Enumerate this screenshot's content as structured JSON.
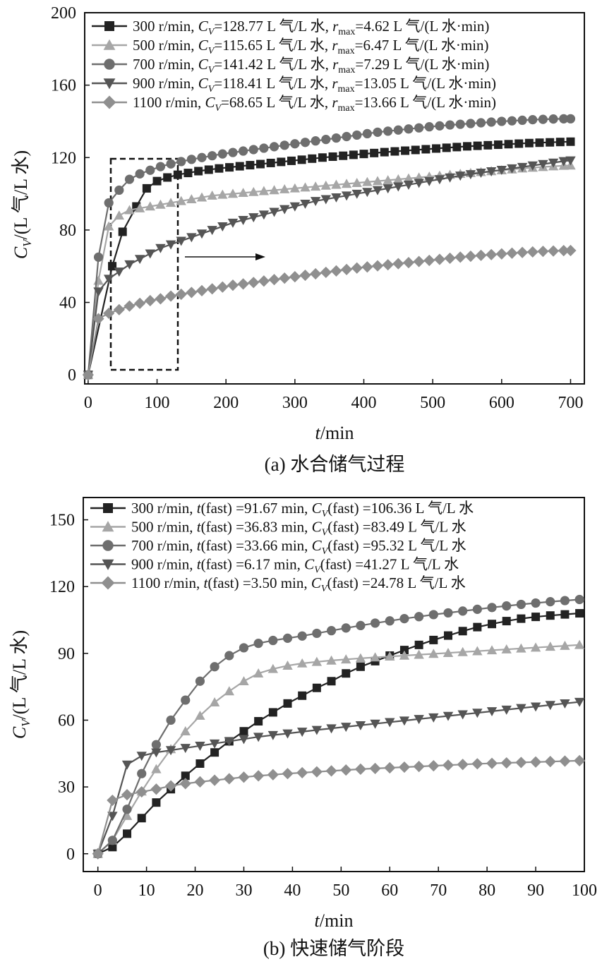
{
  "chart_data": [
    {
      "id": "a",
      "type": "line",
      "caption": "(a) 水合储气过程",
      "xlabel_italic": "t",
      "xlabel_unit": "/min",
      "ylabel_italic": "C",
      "ylabel_sub": "V",
      "ylabel_unit": "/(L 气/L 水)",
      "xlim": [
        -5,
        720
      ],
      "ylim": [
        -5,
        200
      ],
      "xticks": [
        0,
        100,
        200,
        300,
        400,
        500,
        600,
        700
      ],
      "yticks": [
        0,
        40,
        80,
        120,
        160,
        200
      ],
      "annotation": "dashed box 0–100 min with arrow pointing right",
      "series": [
        {
          "name": "300 r/min",
          "marker": "square",
          "color": "#222222",
          "legend": {
            "speed": "300 r/min, ",
            "cv": "=128.77 L 气/L 水, ",
            "r": "=4.62 L 气/(L 水·min)"
          },
          "x": [
            0,
            35,
            50,
            70,
            85,
            100,
            115,
            130,
            145,
            160,
            175,
            190,
            205,
            220,
            235,
            250,
            265,
            280,
            295,
            310,
            325,
            340,
            355,
            370,
            385,
            400,
            415,
            430,
            445,
            460,
            475,
            490,
            505,
            520,
            535,
            550,
            565,
            580,
            595,
            610,
            625,
            640,
            655,
            670,
            685,
            700
          ],
          "y": [
            0,
            60,
            79,
            93,
            103,
            107,
            109,
            110.5,
            111.5,
            112.5,
            113.3,
            114,
            114.6,
            115.2,
            115.8,
            116.4,
            117,
            117.6,
            118.2,
            118.8,
            119.4,
            120,
            120.5,
            121,
            121.5,
            122,
            122.5,
            123,
            123.4,
            123.8,
            124.2,
            124.6,
            125,
            125.4,
            125.8,
            126.2,
            126.5,
            126.8,
            127.1,
            127.4,
            127.7,
            128,
            128.2,
            128.4,
            128.6,
            128.77
          ]
        },
        {
          "name": "500 r/min",
          "marker": "triangle-up",
          "color": "#a6a6a6",
          "legend": {
            "speed": "500 r/min, ",
            "cv": "=115.65 L 气/L 水, ",
            "r": "=6.47 L 气/(L 水·min)"
          },
          "x": [
            0,
            15,
            30,
            45,
            60,
            75,
            90,
            105,
            120,
            135,
            150,
            165,
            180,
            195,
            210,
            225,
            240,
            255,
            270,
            285,
            300,
            315,
            330,
            345,
            360,
            375,
            390,
            405,
            420,
            435,
            450,
            465,
            480,
            495,
            510,
            525,
            540,
            555,
            570,
            585,
            600,
            615,
            630,
            645,
            660,
            675,
            690,
            700
          ],
          "y": [
            0,
            52,
            82,
            88,
            91,
            92,
            93,
            94,
            95,
            96,
            97,
            98,
            99,
            99.5,
            100,
            100.5,
            101,
            101.5,
            102,
            102.5,
            103,
            103.5,
            104,
            104.5,
            105,
            105.5,
            106,
            106.5,
            107,
            107.5,
            108,
            108.5,
            109,
            109.5,
            110,
            110.5,
            111,
            111.5,
            112,
            112.5,
            113,
            113.5,
            114,
            114.4,
            114.8,
            115.2,
            115.5,
            115.65
          ]
        },
        {
          "name": "700 r/min",
          "marker": "circle",
          "color": "#6e6e6e",
          "legend": {
            "speed": "700 r/min, ",
            "cv": "=141.42 L 气/L 水, ",
            "r": "=7.29 L 气/(L 水·min)"
          },
          "x": [
            0,
            15,
            30,
            45,
            60,
            75,
            90,
            105,
            120,
            135,
            150,
            165,
            180,
            195,
            210,
            225,
            240,
            255,
            270,
            285,
            300,
            315,
            330,
            345,
            360,
            375,
            390,
            405,
            420,
            435,
            450,
            465,
            480,
            495,
            510,
            525,
            540,
            555,
            570,
            585,
            600,
            615,
            630,
            645,
            660,
            675,
            690,
            700
          ],
          "y": [
            0,
            65,
            95,
            102,
            108,
            111,
            113,
            115,
            116.5,
            117.8,
            119,
            120,
            121,
            122,
            122.8,
            123.6,
            124.4,
            125.2,
            126,
            126.8,
            127.6,
            128.4,
            129.2,
            130,
            130.8,
            131.6,
            132.4,
            133.2,
            134,
            134.6,
            135.2,
            135.8,
            136.4,
            137,
            137.5,
            138,
            138.4,
            138.8,
            139.2,
            139.6,
            140,
            140.3,
            140.6,
            140.9,
            141.1,
            141.3,
            141.4,
            141.42
          ]
        },
        {
          "name": "900 r/min",
          "marker": "triangle-down",
          "color": "#555555",
          "legend": {
            "speed": "900 r/min, ",
            "cv": "=118.41 L 气/L 水, ",
            "r": "=13.05 L 气/(L 水·min)"
          },
          "x": [
            0,
            15,
            30,
            45,
            60,
            75,
            90,
            105,
            120,
            135,
            150,
            165,
            180,
            195,
            210,
            225,
            240,
            255,
            270,
            285,
            300,
            315,
            330,
            345,
            360,
            375,
            390,
            405,
            420,
            435,
            450,
            465,
            480,
            495,
            510,
            525,
            540,
            555,
            570,
            585,
            600,
            615,
            630,
            645,
            660,
            675,
            690,
            700
          ],
          "y": [
            0,
            46,
            53,
            57,
            61,
            64,
            67,
            70,
            72,
            74,
            76,
            78,
            80,
            82,
            84,
            85.5,
            87,
            88.5,
            90,
            91.5,
            93,
            94.5,
            96,
            97,
            98,
            99,
            100,
            101,
            102,
            103,
            104,
            105,
            106,
            107,
            108,
            109,
            110,
            110.8,
            111.6,
            112.4,
            113.2,
            114,
            114.8,
            115.6,
            116.4,
            117.2,
            118,
            118.41
          ]
        },
        {
          "name": "1100 r/min",
          "marker": "diamond",
          "color": "#8f8f8f",
          "legend": {
            "speed": "1100 r/min, ",
            "cv": "=68.65 L 气/L 水, ",
            "r": "=13.66 L 气/(L 水·min)"
          },
          "x": [
            0,
            15,
            30,
            45,
            60,
            75,
            90,
            105,
            120,
            135,
            150,
            165,
            180,
            195,
            210,
            225,
            240,
            255,
            270,
            285,
            300,
            315,
            330,
            345,
            360,
            375,
            390,
            405,
            420,
            435,
            450,
            465,
            480,
            495,
            510,
            525,
            540,
            555,
            570,
            585,
            600,
            615,
            630,
            645,
            660,
            675,
            690,
            700
          ],
          "y": [
            0,
            31,
            34,
            36,
            38,
            39.5,
            41,
            42,
            43.5,
            44.5,
            45.5,
            46.5,
            47.5,
            48.5,
            49.5,
            50.2,
            51,
            51.8,
            52.6,
            53.4,
            54.2,
            55,
            55.8,
            56.6,
            57.4,
            58.2,
            59,
            59.6,
            60.2,
            60.8,
            61.4,
            62,
            62.6,
            63.2,
            63.8,
            64.4,
            65,
            65.5,
            66,
            66.4,
            66.8,
            67.2,
            67.6,
            67.9,
            68.2,
            68.4,
            68.6,
            68.65
          ]
        }
      ]
    },
    {
      "id": "b",
      "type": "line",
      "caption": "(b) 快速储气阶段",
      "xlabel_italic": "t",
      "xlabel_unit": "/min",
      "ylabel_italic": "C",
      "ylabel_sub": "V",
      "ylabel_unit": "/(L 气/L 水)",
      "xlim": [
        -3,
        100
      ],
      "ylim": [
        -8,
        160
      ],
      "xticks": [
        0,
        10,
        20,
        30,
        40,
        50,
        60,
        70,
        80,
        90,
        100
      ],
      "yticks": [
        0,
        30,
        60,
        90,
        120,
        150
      ],
      "series": [
        {
          "name": "300 r/min",
          "marker": "square",
          "color": "#222222",
          "legend": {
            "speed": "300 r/min, ",
            "t": "(fast) =91.67 min, ",
            "cv": "(fast) =106.36 L 气/L 水"
          },
          "x": [
            0,
            3,
            6,
            9,
            12,
            15,
            18,
            21,
            24,
            27,
            30,
            33,
            36,
            39,
            42,
            45,
            48,
            51,
            54,
            57,
            60,
            63,
            66,
            69,
            72,
            75,
            78,
            81,
            84,
            87,
            90,
            93,
            96,
            99
          ],
          "y": [
            0,
            3,
            9,
            16,
            23,
            29,
            35,
            40.5,
            45.5,
            50.5,
            55,
            59.5,
            63.5,
            67.5,
            71,
            74.5,
            77.5,
            81,
            84,
            86.5,
            89,
            91.5,
            93.8,
            96,
            98,
            100,
            101.8,
            103.2,
            104.5,
            105.6,
            106.4,
            107,
            107.5,
            108
          ]
        },
        {
          "name": "500 r/min",
          "marker": "triangle-up",
          "color": "#a6a6a6",
          "legend": {
            "speed": "500 r/min, ",
            "t": "(fast) =36.83 min, ",
            "cv": "(fast) =83.49 L 气/L 水"
          },
          "x": [
            0,
            3,
            6,
            9,
            12,
            15,
            18,
            21,
            24,
            27,
            30,
            33,
            36,
            39,
            42,
            45,
            48,
            51,
            54,
            57,
            60,
            63,
            66,
            69,
            72,
            75,
            78,
            81,
            84,
            87,
            90,
            93,
            96,
            99
          ],
          "y": [
            0,
            6,
            17,
            28,
            38,
            47,
            55,
            62,
            68,
            73,
            77.5,
            81,
            83,
            84.5,
            85.5,
            86.2,
            86.8,
            87.3,
            87.8,
            88.2,
            88.6,
            89,
            89.4,
            89.8,
            90.2,
            90.6,
            91,
            91.4,
            91.8,
            92.2,
            92.6,
            93,
            93.4,
            93.8
          ]
        },
        {
          "name": "700 r/min",
          "marker": "circle",
          "color": "#6e6e6e",
          "legend": {
            "speed": "700 r/min, ",
            "t": "(fast) =33.66 min, ",
            "cv": "(fast) =95.32 L 气/L 水"
          },
          "x": [
            0,
            3,
            6,
            9,
            12,
            15,
            18,
            21,
            24,
            27,
            30,
            33,
            36,
            39,
            42,
            45,
            48,
            51,
            54,
            57,
            60,
            63,
            66,
            69,
            72,
            75,
            78,
            81,
            84,
            87,
            90,
            93,
            96,
            99
          ],
          "y": [
            0,
            6,
            20,
            36,
            49,
            60,
            69,
            77.5,
            84,
            89,
            92.5,
            94.5,
            95.8,
            96.8,
            97.8,
            99,
            100.2,
            101.4,
            102.5,
            103.6,
            104.6,
            105.6,
            106.5,
            107.4,
            108.2,
            109,
            109.8,
            110.6,
            111.3,
            112,
            112.6,
            113.2,
            113.7,
            114.2
          ]
        },
        {
          "name": "900 r/min",
          "marker": "triangle-down",
          "color": "#555555",
          "legend": {
            "speed": "900 r/min, ",
            "t": "(fast) =6.17 min, ",
            "cv": "(fast) =41.27 L 气/L 水"
          },
          "x": [
            0,
            3,
            6,
            9,
            12,
            15,
            18,
            21,
            24,
            27,
            30,
            33,
            36,
            39,
            42,
            45,
            48,
            51,
            54,
            57,
            60,
            63,
            66,
            69,
            72,
            75,
            78,
            81,
            84,
            87,
            90,
            93,
            96,
            99
          ],
          "y": [
            0,
            17,
            40,
            44,
            45.5,
            46.5,
            47.5,
            48.5,
            49.5,
            50.5,
            51.5,
            52.5,
            53.3,
            54,
            54.8,
            55.6,
            56.3,
            57,
            57.7,
            58.4,
            59.1,
            59.8,
            60.5,
            61.2,
            61.9,
            62.6,
            63.3,
            64,
            64.7,
            65.4,
            66.1,
            66.8,
            67.5,
            68.2
          ]
        },
        {
          "name": "1100 r/min",
          "marker": "diamond",
          "color": "#8f8f8f",
          "legend": {
            "speed": "1100 r/min, ",
            "t": "(fast) =3.50 min, ",
            "cv": "(fast) =24.78 L 气/L 水"
          },
          "x": [
            0,
            3,
            6,
            9,
            12,
            15,
            18,
            21,
            24,
            27,
            30,
            33,
            36,
            39,
            42,
            45,
            48,
            51,
            54,
            57,
            60,
            63,
            66,
            69,
            72,
            75,
            78,
            81,
            84,
            87,
            90,
            93,
            96,
            99
          ],
          "y": [
            0,
            24,
            26.5,
            27.8,
            29,
            30.5,
            31.5,
            32.3,
            33,
            33.7,
            34.4,
            35,
            35.5,
            36,
            36.4,
            36.8,
            37.2,
            37.6,
            38,
            38.3,
            38.6,
            38.9,
            39.2,
            39.5,
            39.8,
            40.1,
            40.4,
            40.6,
            40.8,
            41,
            41.2,
            41.4,
            41.6,
            41.8
          ]
        }
      ]
    }
  ]
}
